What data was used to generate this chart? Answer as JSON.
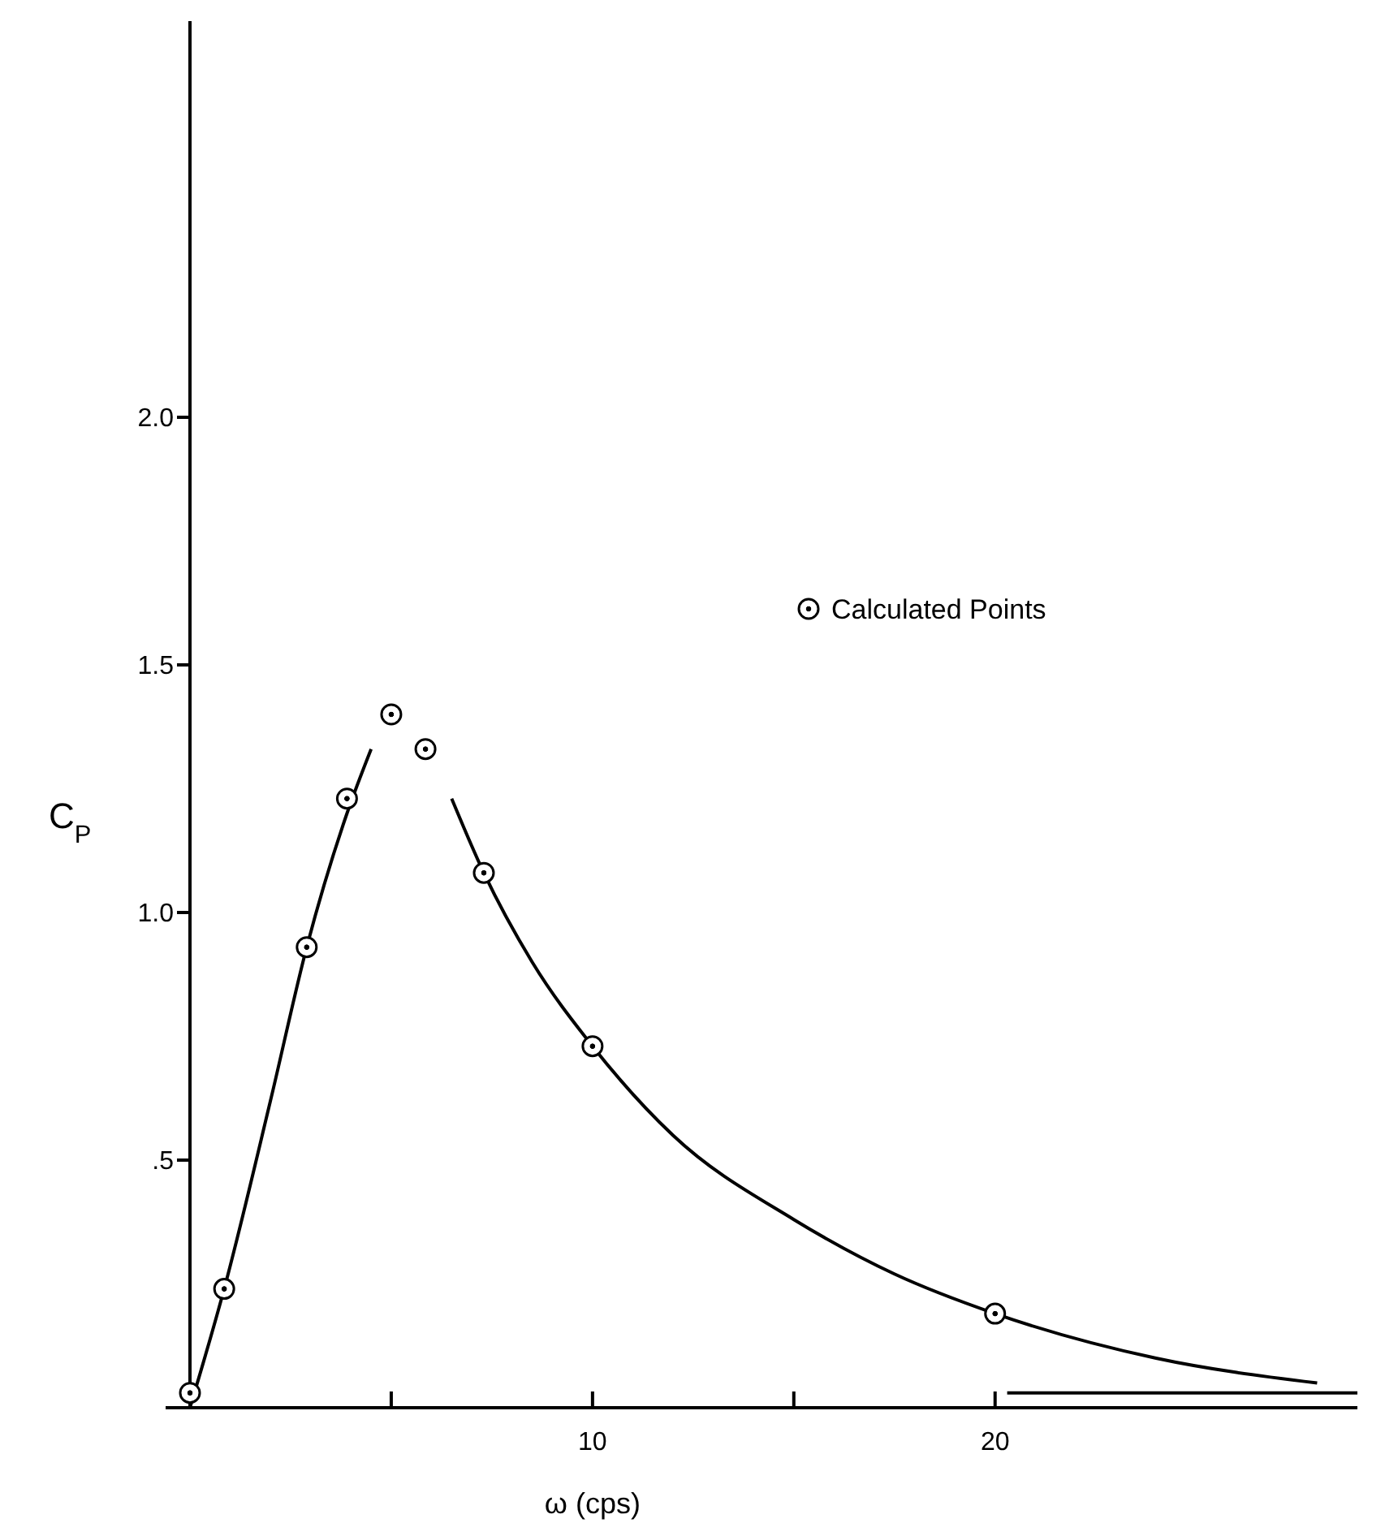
{
  "chart_data": {
    "type": "scatter",
    "xlabel": "ω (cps)",
    "ylabel": "C$_{P}$",
    "xlim": [
      0,
      29
    ],
    "ylim": [
      0,
      2.8
    ],
    "xticks": [
      {
        "value": 5,
        "label": null
      },
      10,
      {
        "value": 15,
        "label": null
      },
      20
    ],
    "yticks": [
      {
        "value": 0.5,
        "label": ".5"
      },
      {
        "value": 1,
        "label": "1.0"
      },
      {
        "value": 1.5,
        "label": "1.5"
      },
      {
        "value": 2,
        "label": "2.0"
      }
    ],
    "grid": false,
    "legend": "right",
    "marker": "circle",
    "series": [
      {
        "name": "Calculated Points",
        "color": "#000000",
        "x": [
          0,
          0.85,
          2.9,
          3.9,
          5.0,
          5.85,
          7.3,
          10,
          20
        ],
        "values": [
          0.03,
          0.24,
          0.93,
          1.23,
          1.4,
          1.33,
          1.08,
          0.73,
          0.19
        ]
      },
      {
        "type": "line",
        "color": "#000000",
        "marker": "none",
        "x": [
          0,
          0.85,
          2.0,
          2.9,
          3.9,
          4.5
        ],
        "values": [
          0,
          0.24,
          0.62,
          0.93,
          1.2,
          1.33
        ]
      },
      {
        "type": "line",
        "color": "#000000",
        "marker": "none",
        "x": [
          6.5,
          7.3,
          8.5,
          10,
          12,
          15,
          17.5,
          20,
          24,
          28
        ],
        "values": [
          1.23,
          1.08,
          0.9,
          0.73,
          0.55,
          0.38,
          0.27,
          0.19,
          0.1,
          0.05
        ]
      },
      {
        "type": "line",
        "color": "#000000",
        "marker": "none",
        "x": [
          20.3,
          29
        ],
        "values": [
          0.03,
          0.03
        ]
      }
    ]
  }
}
